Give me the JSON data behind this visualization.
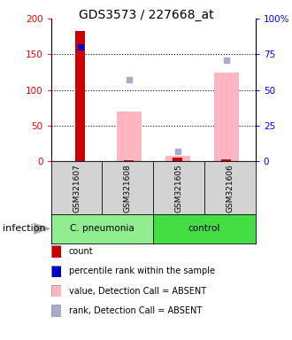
{
  "title": "GDS3573 / 227668_at",
  "samples": [
    "GSM321607",
    "GSM321608",
    "GSM321605",
    "GSM321606"
  ],
  "count_values": [
    183,
    2,
    5,
    3
  ],
  "count_color": "#CC0000",
  "percentile_rank_values": [
    80,
    null,
    null,
    null
  ],
  "percentile_rank_color": "#0000CC",
  "absent_value_bars": [
    null,
    70,
    8,
    124
  ],
  "absent_value_color": "#FFB6C1",
  "absent_rank_values": [
    null,
    57,
    7,
    71
  ],
  "absent_rank_color": "#AAAACC",
  "ylim_left": [
    0,
    200
  ],
  "ylim_right": [
    0,
    100
  ],
  "yticks_left": [
    0,
    50,
    100,
    150,
    200
  ],
  "yticks_right": [
    0,
    25,
    50,
    75,
    100
  ],
  "yticklabels_right": [
    "0",
    "25",
    "50",
    "75",
    "100%"
  ],
  "bar_width": 0.5,
  "infection_label": "infection",
  "group1_label": "C. pneumonia",
  "group2_label": "control",
  "group1_color": "#90EE90",
  "group2_color": "#44DD44",
  "sample_box_color": "#D3D3D3",
  "legend_colors": [
    "#CC0000",
    "#0000CC",
    "#FFB6C1",
    "#AAAACC"
  ],
  "legend_labels": [
    "count",
    "percentile rank within the sample",
    "value, Detection Call = ABSENT",
    "rank, Detection Call = ABSENT"
  ],
  "title_fontsize": 10,
  "tick_fontsize": 7.5,
  "sample_fontsize": 6.5,
  "group_fontsize": 7.5,
  "legend_fontsize": 7,
  "infection_fontsize": 8
}
